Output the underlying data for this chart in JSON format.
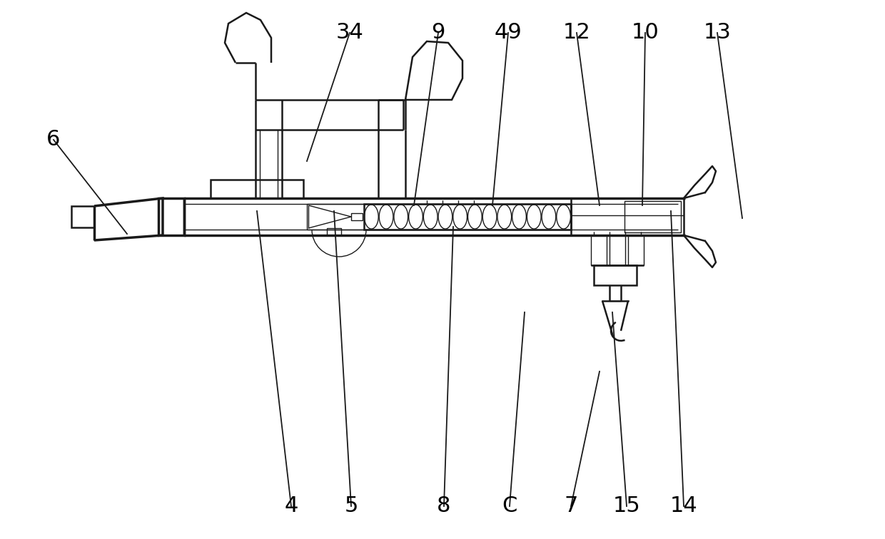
{
  "bg": "#ffffff",
  "lc": "#1a1a1a",
  "lw1": 1.0,
  "lw2": 1.8,
  "lw3": 2.5,
  "label_fs": 22,
  "labels_top": [
    [
      "34",
      490,
      710,
      430,
      530
    ],
    [
      "9",
      614,
      710,
      580,
      468
    ],
    [
      "49",
      712,
      710,
      690,
      468
    ],
    [
      "12",
      808,
      710,
      840,
      468
    ],
    [
      "10",
      904,
      710,
      900,
      468
    ],
    [
      "13",
      1005,
      710,
      1040,
      450
    ]
  ],
  "labels_left": [
    [
      "6",
      75,
      560,
      178,
      428
    ]
  ],
  "labels_bottom": [
    [
      "4",
      408,
      46,
      360,
      460
    ],
    [
      "5",
      492,
      46,
      468,
      460
    ],
    [
      "8",
      622,
      46,
      635,
      438
    ],
    [
      "C",
      714,
      46,
      735,
      318
    ],
    [
      "7",
      800,
      46,
      840,
      235
    ],
    [
      "15",
      878,
      46,
      858,
      318
    ],
    [
      "14",
      958,
      46,
      940,
      460
    ]
  ]
}
